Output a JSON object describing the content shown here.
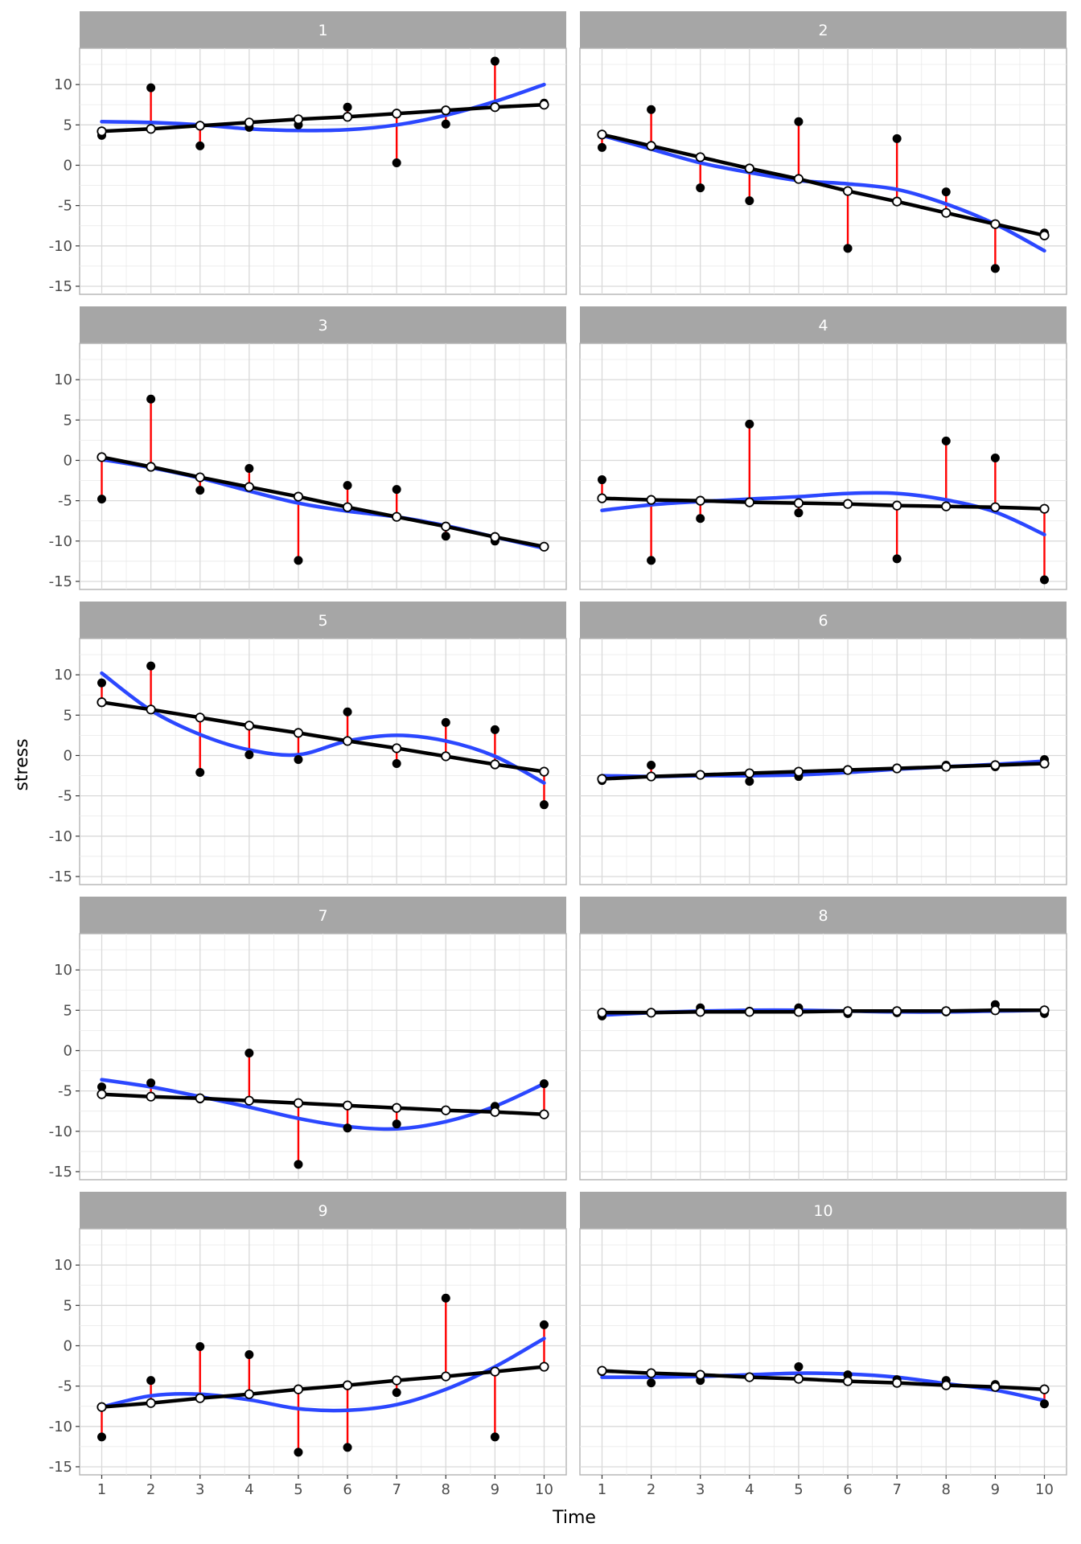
{
  "chart_data": {
    "type": "faceted-line-scatter",
    "xlabel": "Time",
    "ylabel": "stress",
    "x_ticks": [
      1,
      2,
      3,
      4,
      5,
      6,
      7,
      8,
      9,
      10
    ],
    "y_ticks": [
      10,
      5,
      0,
      -5,
      -10,
      -15
    ],
    "xlim": [
      0.55,
      10.45
    ],
    "ylim": [
      -16,
      14.5
    ],
    "grid": true,
    "layout": "5 rows x 2 columns",
    "colors": {
      "observed": "#000000",
      "fitted_line": "#000000",
      "fitted_points": "#ffffff",
      "residual": "#ff0000",
      "smooth": "#2b47ff",
      "strip": "#a6a6a6",
      "strip_text": "#ffffff"
    },
    "panels": [
      {
        "id": "1",
        "x": [
          1,
          2,
          3,
          4,
          5,
          6,
          7,
          8,
          9,
          10
        ],
        "observed": [
          3.7,
          9.6,
          2.4,
          4.7,
          5.0,
          7.2,
          0.3,
          5.1,
          12.9,
          7.7
        ],
        "fitted": [
          4.2,
          4.5,
          4.9,
          5.3,
          5.7,
          6.0,
          6.4,
          6.8,
          7.2,
          7.5
        ],
        "smooth": [
          5.4,
          5.3,
          5.0,
          4.5,
          4.3,
          4.4,
          5.0,
          6.2,
          7.9,
          10.0
        ]
      },
      {
        "id": "2",
        "x": [
          1,
          2,
          3,
          4,
          5,
          6,
          7,
          8,
          9,
          10
        ],
        "observed": [
          2.2,
          6.9,
          -2.8,
          -4.4,
          5.4,
          -10.3,
          3.3,
          -3.3,
          -12.8,
          -8.4
        ],
        "fitted": [
          3.8,
          2.4,
          1.0,
          -0.4,
          -1.7,
          -3.2,
          -4.5,
          -5.9,
          -7.3,
          -8.7
        ],
        "smooth": [
          3.7,
          2.0,
          0.3,
          -0.9,
          -1.9,
          -2.3,
          -3.0,
          -4.8,
          -7.3,
          -10.6
        ]
      },
      {
        "id": "3",
        "x": [
          1,
          2,
          3,
          4,
          5,
          6,
          7,
          8,
          9,
          10
        ],
        "observed": [
          -4.8,
          7.6,
          -3.7,
          -1.0,
          -12.4,
          -3.1,
          -3.6,
          -9.4,
          -10.0,
          -10.7
        ],
        "fitted": [
          0.4,
          -0.8,
          -2.1,
          -3.3,
          -4.5,
          -5.8,
          -7.0,
          -8.2,
          -9.5,
          -10.7
        ],
        "smooth": [
          0.1,
          -0.9,
          -2.2,
          -3.8,
          -5.3,
          -6.3,
          -7.0,
          -8.1,
          -9.5,
          -10.9
        ]
      },
      {
        "id": "4",
        "x": [
          1,
          2,
          3,
          4,
          5,
          6,
          7,
          8,
          9,
          10
        ],
        "observed": [
          -2.4,
          -12.4,
          -7.2,
          4.5,
          -6.5,
          -5.4,
          -12.2,
          2.4,
          0.3,
          -14.8
        ],
        "fitted": [
          -4.7,
          -4.9,
          -5.0,
          -5.2,
          -5.3,
          -5.4,
          -5.6,
          -5.7,
          -5.8,
          -6.0
        ],
        "smooth": [
          -6.2,
          -5.5,
          -5.1,
          -4.8,
          -4.5,
          -4.1,
          -4.1,
          -4.9,
          -6.4,
          -9.2
        ]
      },
      {
        "id": "5",
        "x": [
          1,
          2,
          3,
          4,
          5,
          6,
          7,
          8,
          9,
          10
        ],
        "observed": [
          9.0,
          11.1,
          -2.1,
          0.1,
          -0.5,
          5.4,
          -1.0,
          4.1,
          3.2,
          -6.1
        ],
        "fitted": [
          6.6,
          5.7,
          4.7,
          3.7,
          2.8,
          1.8,
          0.9,
          -0.1,
          -1.1,
          -2.0
        ],
        "smooth": [
          10.2,
          5.6,
          2.6,
          0.7,
          0.1,
          1.8,
          2.5,
          1.8,
          -0.1,
          -3.4
        ]
      },
      {
        "id": "6",
        "x": [
          1,
          2,
          3,
          4,
          5,
          6,
          7,
          8,
          9,
          10
        ],
        "observed": [
          -3.1,
          -1.2,
          -2.4,
          -3.2,
          -2.6,
          -1.8,
          -1.6,
          -1.2,
          -1.4,
          -0.5
        ],
        "fitted": [
          -2.9,
          -2.6,
          -2.4,
          -2.2,
          -2.0,
          -1.8,
          -1.6,
          -1.4,
          -1.2,
          -1.0
        ],
        "smooth": [
          -2.5,
          -2.6,
          -2.5,
          -2.5,
          -2.4,
          -2.1,
          -1.7,
          -1.4,
          -1.1,
          -0.7
        ]
      },
      {
        "id": "7",
        "x": [
          1,
          2,
          3,
          4,
          5,
          6,
          7,
          8,
          9,
          10
        ],
        "observed": [
          -4.5,
          -4.0,
          -6.0,
          -0.3,
          -14.1,
          -9.6,
          -9.1,
          -7.4,
          -6.9,
          -4.1
        ],
        "fitted": [
          -5.4,
          -5.7,
          -5.9,
          -6.2,
          -6.5,
          -6.8,
          -7.1,
          -7.4,
          -7.6,
          -7.9
        ],
        "smooth": [
          -3.6,
          -4.5,
          -5.7,
          -7.0,
          -8.4,
          -9.4,
          -9.7,
          -8.8,
          -6.9,
          -4.1
        ]
      },
      {
        "id": "8",
        "x": [
          1,
          2,
          3,
          4,
          5,
          6,
          7,
          8,
          9,
          10
        ],
        "observed": [
          4.3,
          4.7,
          5.3,
          4.9,
          5.3,
          4.6,
          4.7,
          4.8,
          5.7,
          4.6
        ],
        "fitted": [
          4.7,
          4.7,
          4.8,
          4.8,
          4.8,
          4.9,
          4.9,
          4.9,
          5.0,
          5.0
        ],
        "smooth": [
          4.4,
          4.7,
          4.9,
          5.0,
          5.0,
          4.9,
          4.8,
          4.8,
          4.9,
          5.0
        ]
      },
      {
        "id": "9",
        "x": [
          1,
          2,
          3,
          4,
          5,
          6,
          7,
          8,
          9,
          10
        ],
        "observed": [
          -11.3,
          -4.3,
          -0.1,
          -1.1,
          -13.2,
          -12.6,
          -5.8,
          5.9,
          -11.3,
          2.6
        ],
        "fitted": [
          -7.6,
          -7.1,
          -6.5,
          -6.0,
          -5.4,
          -4.9,
          -4.3,
          -3.8,
          -3.2,
          -2.6
        ],
        "smooth": [
          -7.6,
          -6.2,
          -6.0,
          -6.7,
          -7.8,
          -8.0,
          -7.3,
          -5.4,
          -2.6,
          0.9
        ]
      },
      {
        "id": "10",
        "x": [
          1,
          2,
          3,
          4,
          5,
          6,
          7,
          8,
          9,
          10
        ],
        "observed": [
          -3.2,
          -4.6,
          -4.3,
          -3.9,
          -2.6,
          -3.6,
          -4.2,
          -4.3,
          -4.8,
          -7.2
        ],
        "fitted": [
          -3.1,
          -3.4,
          -3.6,
          -3.9,
          -4.1,
          -4.4,
          -4.6,
          -4.9,
          -5.1,
          -5.4
        ],
        "smooth": [
          -3.9,
          -3.9,
          -3.8,
          -3.6,
          -3.4,
          -3.5,
          -3.9,
          -4.7,
          -5.5,
          -6.8
        ]
      }
    ]
  }
}
